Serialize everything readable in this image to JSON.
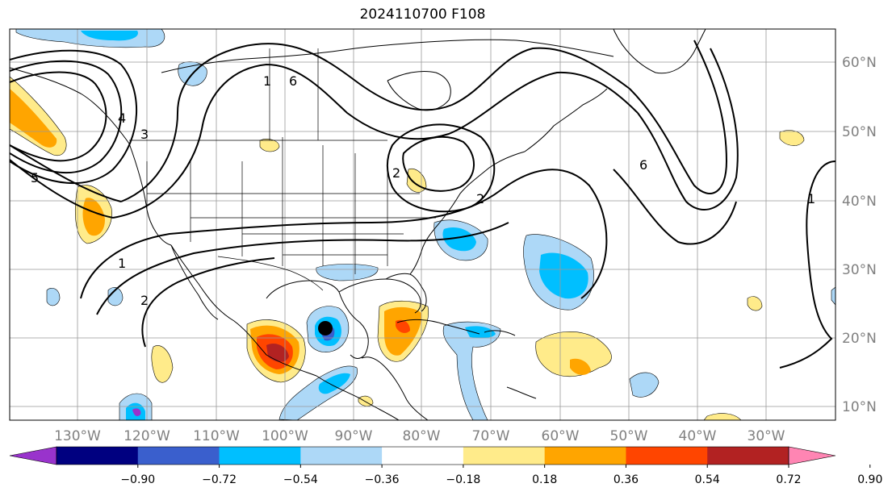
{
  "title": "2024110700 F108",
  "map": {
    "lon_labels": [
      "130°W",
      "120°W",
      "110°W",
      "100°W",
      "90°W",
      "80°W",
      "70°W",
      "60°W",
      "50°W",
      "40°W",
      "30°W"
    ],
    "lat_labels": [
      "60°N",
      "50°N",
      "40°N",
      "30°N",
      "20°N",
      "10°N"
    ],
    "contour_labels": [
      "1",
      "2",
      "3",
      "4",
      "5",
      "6",
      "2",
      "1",
      "1",
      "2",
      "6"
    ],
    "storm_marker": "storm-center"
  },
  "colorbar": {
    "tick_labels": [
      "−0.90",
      "−0.72",
      "−0.54",
      "−0.36",
      "−0.18",
      "0.18",
      "0.36",
      "0.54",
      "0.72",
      "0.90"
    ],
    "colors": [
      "#9933cc",
      "#000080",
      "#3a5fcd",
      "#00bfff",
      "#add8f7",
      "#ffffff",
      "#ffeb8a",
      "#ffa500",
      "#ff4500",
      "#b22222",
      "#ff85b3"
    ]
  }
}
